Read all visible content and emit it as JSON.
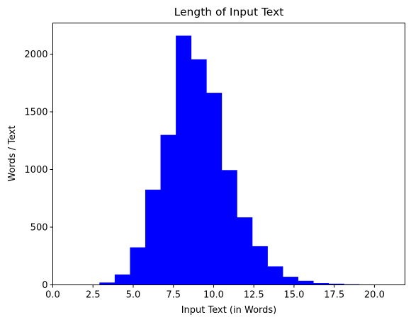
{
  "chart_data": {
    "type": "bar",
    "title": "Length of Input Text",
    "xlabel": "Input Text (in Words)",
    "ylabel": "Words / Text",
    "xlim": [
      0,
      21.9
    ],
    "ylim": [
      0,
      2270
    ],
    "grid": false,
    "bar_color": "#0000ff",
    "x_ticks": [
      0,
      2.5,
      5,
      7.5,
      10,
      12.5,
      15,
      17.5,
      20
    ],
    "x_tick_labels": [
      "0.0",
      "2.5",
      "5.0",
      "7.5",
      "10.0",
      "12.5",
      "15.0",
      "17.5",
      "20.0"
    ],
    "y_ticks": [
      0,
      500,
      1000,
      1500,
      2000
    ],
    "y_tick_labels": [
      "0",
      "500",
      "1000",
      "1500",
      "2000"
    ],
    "bins": [
      {
        "x0": 1.95,
        "x1": 2.9,
        "value": 3
      },
      {
        "x0": 2.9,
        "x1": 3.85,
        "value": 20
      },
      {
        "x0": 3.85,
        "x1": 4.8,
        "value": 90
      },
      {
        "x0": 4.8,
        "x1": 5.75,
        "value": 325
      },
      {
        "x0": 5.75,
        "x1": 6.7,
        "value": 825
      },
      {
        "x0": 6.7,
        "x1": 7.65,
        "value": 1300
      },
      {
        "x0": 7.65,
        "x1": 8.6,
        "value": 2160
      },
      {
        "x0": 8.6,
        "x1": 9.55,
        "value": 1955
      },
      {
        "x0": 9.55,
        "x1": 10.5,
        "value": 1665
      },
      {
        "x0": 10.5,
        "x1": 11.45,
        "value": 995
      },
      {
        "x0": 11.45,
        "x1": 12.4,
        "value": 585
      },
      {
        "x0": 12.4,
        "x1": 13.35,
        "value": 335
      },
      {
        "x0": 13.35,
        "x1": 14.3,
        "value": 160
      },
      {
        "x0": 14.3,
        "x1": 15.25,
        "value": 70
      },
      {
        "x0": 15.25,
        "x1": 16.2,
        "value": 35
      },
      {
        "x0": 16.2,
        "x1": 17.15,
        "value": 15
      },
      {
        "x0": 17.15,
        "x1": 18.1,
        "value": 10
      },
      {
        "x0": 18.1,
        "x1": 19.05,
        "value": 5
      },
      {
        "x0": 19.05,
        "x1": 20.0,
        "value": 3
      },
      {
        "x0": 20.0,
        "x1": 20.95,
        "value": 2
      }
    ]
  }
}
